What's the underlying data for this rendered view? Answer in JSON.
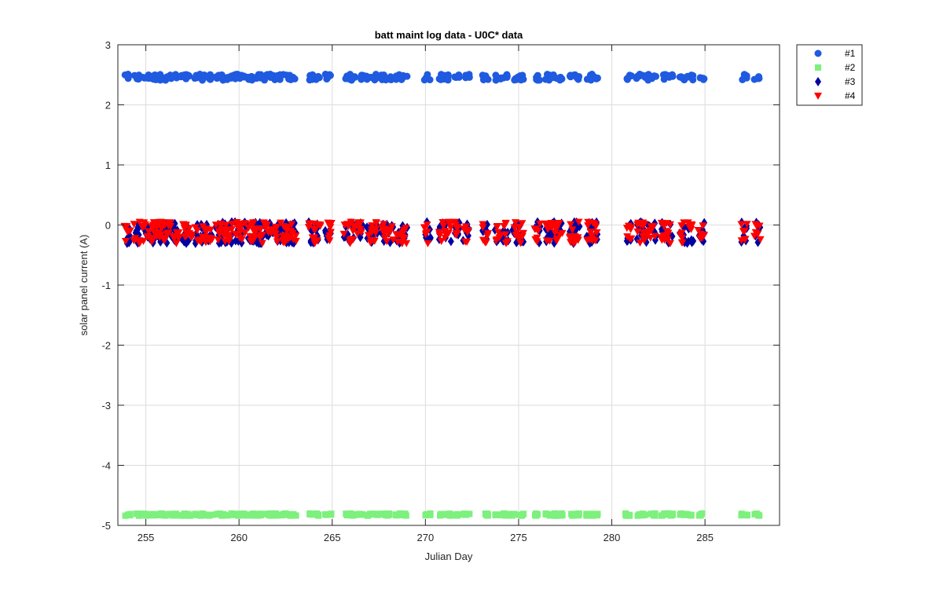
{
  "chart_data": {
    "type": "scatter",
    "title": "batt maint log data - U0C* data",
    "xlabel": "Julian Day",
    "ylabel": "solar panel current (A)",
    "xlim": [
      253.5,
      289
    ],
    "ylim": [
      -5,
      3
    ],
    "xticks": [
      255,
      260,
      265,
      270,
      275,
      280,
      285
    ],
    "yticks": [
      -5,
      -4,
      -3,
      -2,
      -1,
      0,
      1,
      2,
      3
    ],
    "grid": true,
    "legend_position": "outside-top-right",
    "day_clusters": [
      254,
      254.5,
      255,
      255.3,
      255.5,
      255.8,
      256,
      256.3,
      256.6,
      257,
      257.3,
      257.8,
      258.1,
      258.4,
      258.9,
      259.2,
      259.5,
      259.9,
      260.2,
      260.6,
      260.9,
      261.2,
      261.6,
      261.9,
      262.3,
      262.6,
      262.9,
      263.9,
      264.2,
      264.8,
      265.8,
      266.1,
      266.5,
      267,
      267.3,
      267.8,
      268.1,
      268.6,
      268.9,
      270.1,
      270.9,
      271.2,
      271.7,
      272.2,
      273.2,
      273.9,
      274.3,
      274.8,
      275.1,
      276,
      276.6,
      276.9,
      277.2,
      277.9,
      278.1,
      278.8,
      279.1,
      280.9,
      281.5,
      281.8,
      282.2,
      282.8,
      283.1,
      283.8,
      284.2,
      284.8,
      287.1,
      287.8
    ],
    "series": [
      {
        "name": "#1",
        "marker": "circle",
        "color": "#1f5ae0",
        "y_center": 2.46,
        "y_spread": 0.05
      },
      {
        "name": "#2",
        "marker": "square",
        "color": "#7df07d",
        "y_center": -4.82,
        "y_spread": 0.02
      },
      {
        "name": "#3",
        "marker": "diamond",
        "color": "#0000a0",
        "y_center": -0.18,
        "y_spread": 0.18
      },
      {
        "name": "#4",
        "marker": "triangle-down",
        "color": "#ff0000",
        "y_center": -0.18,
        "y_spread": 0.18
      }
    ]
  }
}
